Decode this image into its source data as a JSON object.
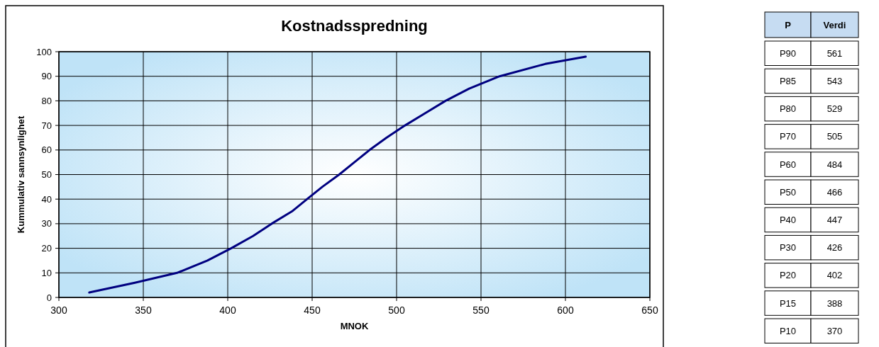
{
  "chart_data": [
    {
      "type": "line",
      "title": "Kostnadsspredning",
      "xlabel": "MNOK",
      "ylabel": "Kummulativ sannsynlighet",
      "series": [
        {
          "color": "#000080",
          "x": [
            318,
            345,
            370,
            388,
            402,
            415,
            426,
            438,
            447,
            456,
            466,
            475,
            484,
            494,
            505,
            517,
            529,
            543,
            561,
            588,
            612
          ],
          "values": [
            2,
            6,
            10,
            15,
            20,
            25,
            30,
            35,
            40,
            45,
            50,
            55,
            60,
            65,
            70,
            75,
            80,
            85,
            90,
            95,
            98
          ]
        }
      ],
      "xlim": [
        300,
        650
      ],
      "xticks": [
        300,
        350,
        400,
        450,
        500,
        550,
        600,
        650
      ],
      "ylim": [
        0,
        100
      ],
      "yticks": [
        0,
        10,
        20,
        30,
        40,
        50,
        60,
        70,
        80,
        90,
        100
      ],
      "grid": true,
      "marker": "none",
      "line_style": "solid"
    },
    {
      "type": "other",
      "xlabel": "P",
      "ylabel": "Verdi",
      "categories": [
        "P90",
        "P85",
        "P80",
        "P70",
        "P60",
        "P50",
        "P40",
        "P30",
        "P20",
        "P15",
        "P10"
      ],
      "values": [
        561,
        543,
        529,
        505,
        484,
        466,
        447,
        426,
        402,
        388,
        370
      ],
      "data_labels": true
    }
  ]
}
